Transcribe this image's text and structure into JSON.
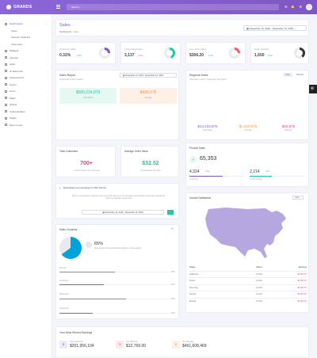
{
  "brand": {
    "name": "GRANDS"
  },
  "topbar": {
    "search_placeholder": "Search..."
  },
  "sidebar": {
    "items": [
      {
        "label": "Dashboards",
        "active": true
      },
      {
        "label": "Sales",
        "sub": true,
        "active": true
      },
      {
        "label": "Website Statistics",
        "sub": true
      },
      {
        "label": "Alternative",
        "sub": true
      },
      {
        "label": "Widgets"
      },
      {
        "label": "Layouts"
      },
      {
        "label": "Apps"
      },
      {
        "label": "UI Elements"
      },
      {
        "label": "Advanced UI"
      },
      {
        "label": "Forms"
      },
      {
        "label": "Icons"
      },
      {
        "label": "Maps"
      },
      {
        "label": "Charts"
      },
      {
        "label": "Authentication"
      },
      {
        "label": "Pages"
      },
      {
        "label": "Menu Level"
      }
    ]
  },
  "header": {
    "title": "Sales",
    "breadcrumb_home": "Dashboards",
    "breadcrumb_current": "Sales",
    "date_range": "November 14, 2019 - November 13, 2019"
  },
  "kpis": [
    {
      "label": "Conversion Rate",
      "value": "0.32%",
      "delta": "2.5%",
      "delta_color": "#1dc9a0",
      "ring": "#7e57c2",
      "pct": 25
    },
    {
      "label": "Unique Purchases",
      "value": "3,137",
      "delta": "1.5%",
      "delta_color": "#f55c6b",
      "ring": "#1dc9a0",
      "pct": 45
    },
    {
      "label": "Avg. Order Value",
      "value": "$306.20",
      "delta": "1.9%",
      "delta_color": "#1dc9a0",
      "ring": "#f55c6b",
      "pct": 25
    },
    {
      "label": "Order Quantity",
      "value": "1,650",
      "delta": "1.6%",
      "delta_color": "#1dc9a0",
      "ring": "#333333",
      "pct": 40
    }
  ],
  "sales_report": {
    "title": "Sales Report",
    "subtitle": "Total profit of last 7 weeks",
    "date_range": "November 14, 2019 - November 13, 2019",
    "total_sales_value": "$589,234,879",
    "total_sales_label": "Total Sales",
    "average_value": "$436,076",
    "average_label": "Average"
  },
  "regional": {
    "title": "Regional Sales",
    "subtitle": "Total sales of last 7 weeks from all regions",
    "tabs": [
      "Daily",
      "Monthly"
    ],
    "stats": [
      {
        "value": "$14,234,876",
        "label": "Total Sales",
        "color": "#7e57c2"
      },
      {
        "value": "$1,620,076",
        "label": "Average",
        "color": "#ff8f3b"
      },
      {
        "value": "$20,876",
        "label": "Refunds",
        "color": "#e23b86"
      }
    ]
  },
  "customers": {
    "title": "Total Customers",
    "value": "700+",
    "note": "+ 2.9% increase from last week"
  },
  "avg_order": {
    "title": "Average Order Value",
    "value": "$32.52",
    "note": "5 transactions last week"
  },
  "product_sales": {
    "title": "Product Sales",
    "total": "65,353",
    "left_value": "4,324",
    "left_sub": "Units",
    "right_value": "2,214",
    "right_sub": "Units",
    "left_note": "+2.9% rise",
    "right_note": "+9.4% increase"
  },
  "download": {
    "title": "Download your earnings to CSV format",
    "body": "Sed ut et perspiciatis molestias unde omnis iste natus error sit voluptatem accusantium doloremque laudantium, totam rem aperiam eaque ipsa.",
    "date_range": "November 14, 2019 - November 13, 2019"
  },
  "channels": {
    "title": "Sales Channels",
    "pct": "65%",
    "pct_sub": "Nulla neque sit dicta accusantium dolorem, totam aperiam.",
    "rows": [
      {
        "label": "Friends",
        "pct": 50,
        "pct_label": "50%",
        "color": "#f55c6b"
      },
      {
        "label": "Instagram",
        "pct": 40,
        "pct_label": "40%",
        "color": "#7e57c2"
      },
      {
        "label": "Whatsapp",
        "pct": 60,
        "pct_label": "60%",
        "color": "#1dc9a0"
      },
      {
        "label": "Facebook",
        "pct": 30,
        "pct_label": "30%",
        "color": "#3b7ddd"
      }
    ]
  },
  "income": {
    "title": "Income Distribution",
    "select": "USA",
    "columns": [
      "States",
      "Orders",
      "Earnings"
    ],
    "rows": [
      {
        "state": "California",
        "orders": "11,201",
        "earn": "$1,657.67"
      },
      {
        "state": "Texas",
        "orders": "11,201",
        "earn": "$1,657.67"
      },
      {
        "state": "Wyoming",
        "orders": "11,201",
        "earn": "$1,657.67"
      },
      {
        "state": "Florida",
        "orders": "11,201",
        "earn": "$1,657.67"
      },
      {
        "state": "Florida",
        "orders": "11,201",
        "earn": "$1,657.67"
      }
    ]
  },
  "earnings": {
    "title": "Your Most Recent Earnings",
    "items": [
      {
        "label": "Gross Earnings",
        "value": "$201,956,104",
        "color": "#7e57c2"
      },
      {
        "label": "Tax Withheld",
        "value": "$12,769.00",
        "color": "#f55c6b"
      },
      {
        "label": "Net Earnings",
        "value": "$491,608,469",
        "color": "#ff8f3b"
      }
    ]
  },
  "colors": {
    "accent": "#7e57c2",
    "green": "#1dc9a0",
    "orange": "#ff8f3b",
    "pink": "#e23b86"
  }
}
